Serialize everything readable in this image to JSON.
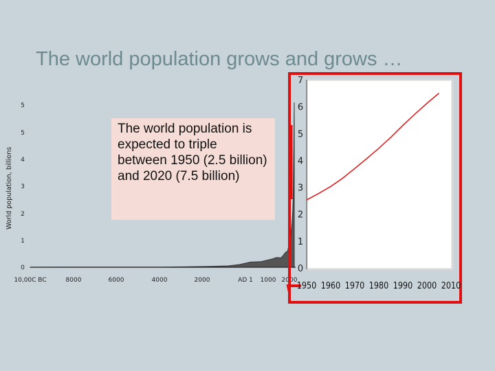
{
  "slide": {
    "title": "The world population grows and grows …"
  },
  "callout": {
    "text": "The world population is expected to triple between 1950 (2.5 billion) and 2020 (7.5 billion)"
  },
  "colors": {
    "background": "#c9d3da",
    "title": "#6c8a8f",
    "area_fill": "#555555",
    "inset_line": "#e02020",
    "highlight_border": "#e01010",
    "callout_bg": "#f5dcd6"
  },
  "chart_data": [
    {
      "type": "area",
      "title": "",
      "xlabel": "",
      "ylabel": "World population, billions",
      "ylim": [
        0,
        6
      ],
      "y_tick_labels": [
        "0",
        "1",
        "2",
        "3",
        "4",
        "5",
        "5"
      ],
      "x_tick_labels": [
        "10,00C BC",
        "8000",
        "6000",
        "4000",
        "2000",
        "AD 1",
        "1000",
        "2000"
      ],
      "x": [
        -10000,
        -8000,
        -6000,
        -4000,
        -3000,
        -2000,
        -1000,
        -500,
        0,
        500,
        1000,
        1200,
        1400,
        1500,
        1600,
        1700,
        1750,
        1800,
        1850,
        1900,
        1930,
        1950,
        1960,
        1970,
        1980,
        1990,
        2000
      ],
      "values": [
        0.002,
        0.004,
        0.006,
        0.008,
        0.014,
        0.027,
        0.05,
        0.1,
        0.19,
        0.21,
        0.31,
        0.36,
        0.35,
        0.44,
        0.55,
        0.6,
        0.79,
        0.98,
        1.26,
        1.65,
        2.07,
        2.53,
        3.03,
        3.7,
        4.45,
        5.3,
        6.1
      ],
      "grid": false
    },
    {
      "type": "line",
      "title": "",
      "xlabel": "",
      "ylabel": "",
      "xlim": [
        1950,
        2010
      ],
      "ylim": [
        0,
        7
      ],
      "x_tick_labels": [
        "1950",
        "1960",
        "1970",
        "1980",
        "1990",
        "2000",
        "2010"
      ],
      "y_tick_labels": [
        "0",
        "1",
        "2",
        "3",
        "4",
        "5",
        "6",
        "7"
      ],
      "x": [
        1950,
        1955,
        1960,
        1965,
        1970,
        1975,
        1980,
        1985,
        1990,
        1995,
        2000,
        2005
      ],
      "values": [
        2.53,
        2.77,
        3.03,
        3.34,
        3.7,
        4.07,
        4.45,
        4.86,
        5.3,
        5.72,
        6.12,
        6.5
      ],
      "grid": false
    }
  ]
}
